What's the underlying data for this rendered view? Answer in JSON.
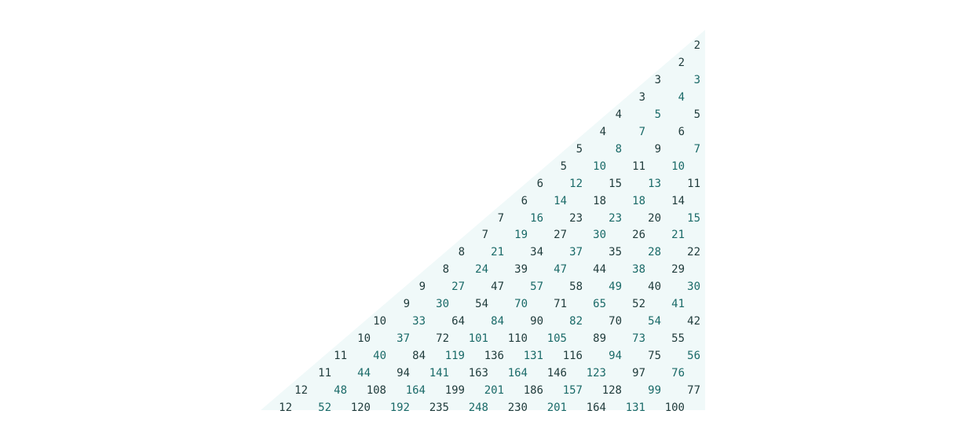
{
  "background_color": "#f0f9f9",
  "text_color": "#1f3b3b",
  "rows": [
    [
      "2"
    ],
    [
      "2"
    ],
    [
      "3",
      "3"
    ],
    [
      "3",
      "4"
    ],
    [
      "4",
      "5",
      "5"
    ],
    [
      "4",
      "7",
      "6"
    ],
    [
      "5",
      "8",
      "9",
      "7"
    ],
    [
      "5",
      "10",
      "11",
      "10"
    ],
    [
      "6",
      "12",
      "15",
      "13",
      "11"
    ],
    [
      "6",
      "14",
      "18",
      "18",
      "14"
    ],
    [
      "7",
      "16",
      "23",
      "23",
      "20",
      "15"
    ],
    [
      "7",
      "19",
      "27",
      "30",
      "26",
      "21"
    ],
    [
      "8",
      "21",
      "34",
      "37",
      "35",
      "28",
      "22"
    ],
    [
      "8",
      "24",
      "39",
      "47",
      "44",
      "38",
      "29"
    ],
    [
      "9",
      "27",
      "47",
      "57",
      "58",
      "49",
      "40",
      "30"
    ],
    [
      "9",
      "30",
      "54",
      "70",
      "71",
      "65",
      "52",
      "41"
    ],
    [
      "10",
      "33",
      "64",
      "84",
      "90",
      "82",
      "70",
      "54",
      "42"
    ],
    [
      "10",
      "37",
      "72",
      "101",
      "110",
      "105",
      "89",
      "73",
      "55"
    ],
    [
      "11",
      "40",
      "84",
      "119",
      "136",
      "131",
      "116",
      "94",
      "75",
      "56"
    ],
    [
      "11",
      "44",
      "94",
      "141",
      "163",
      "164",
      "146",
      "123",
      "97",
      "76"
    ],
    [
      "12",
      "48",
      "108",
      "164",
      "199",
      "201",
      "186",
      "157",
      "128",
      "99",
      "77"
    ],
    [
      "12",
      "52",
      "120",
      "192",
      "235",
      "248",
      "230",
      "201",
      "164",
      "131",
      "100"
    ]
  ]
}
